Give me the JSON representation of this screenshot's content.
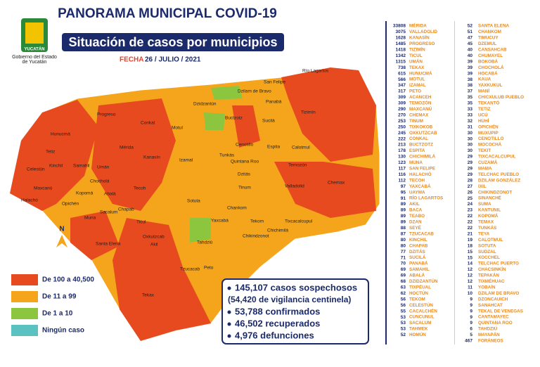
{
  "header": {
    "title": "PANORAMA MUNICIPAL COVID-19",
    "subtitle": "Situación de casos por municipios",
    "date_label": "FECHA",
    "date": "26 / JULIO / 2021",
    "logo_text": "YUCATÁN",
    "government": "Gobierno del Estado de Yucatán"
  },
  "map": {
    "north": "N",
    "labels": [
      "Río Lagartos",
      "San Felipe",
      "Dzilam de Bravo",
      "Tizimín",
      "Panabá",
      "Progreso",
      "Dzidzantún",
      "Buctzotz",
      "Sucilá",
      "Hunucmá",
      "Conkal",
      "Motul",
      "Mérida",
      "Kanasín",
      "Izamal",
      "Cenotillo",
      "Espita",
      "Calotmul",
      "Tetiz",
      "Kinchil",
      "Samahil",
      "Umán",
      "Celestún",
      "Temozón",
      "Maxcanú",
      "Chocholá",
      "Kopomá",
      "Abalá",
      "Tecoh",
      "Tunkás",
      "Quintana Roo",
      "Dzitás",
      "Tinum",
      "Valladolid",
      "Chemax",
      "Halachó",
      "Opichén",
      "Muna",
      "Sacalum",
      "Chapab",
      "Ticul",
      "Sotuta",
      "Yaxcabá",
      "Chankom",
      "Tekom",
      "Santa Elena",
      "Oxkutzcab",
      "Akil",
      "Tahdziú",
      "Chikindzonot",
      "Chichimilá",
      "Tzucacab",
      "Peto",
      "Tekax",
      "Tixcacalcupul"
    ]
  },
  "legend": [
    {
      "label": "De 100 a 40,500",
      "color": "#e64a1e"
    },
    {
      "label": "De 11 a 99",
      "color": "#f5a51c"
    },
    {
      "label": "De 1 a 10",
      "color": "#8cc63e"
    },
    {
      "label": "Ningún caso",
      "color": "#5cc1c1"
    }
  ],
  "stats": [
    "145,107 casos sospechosos",
    "(54,420 de vigilancia centinela)",
    "53,788 confirmados",
    "46,502 recuperados",
    "4,976 defunciones"
  ],
  "municipalities": [
    [
      "33808",
      "MÉRIDA"
    ],
    [
      "3075",
      "VALLADOLID"
    ],
    [
      "1628",
      "KANASÍN"
    ],
    [
      "1485",
      "PROGRESO"
    ],
    [
      "1418",
      "TIZIMÍN"
    ],
    [
      "1342",
      "TICUL"
    ],
    [
      "1315",
      "UMÁN"
    ],
    [
      "738",
      "TEKAX"
    ],
    [
      "615",
      "HUNUCMÁ"
    ],
    [
      "566",
      "MOTUL"
    ],
    [
      "347",
      "IZAMAL"
    ],
    [
      "317",
      "PETO"
    ],
    [
      "309",
      "ACANCEH"
    ],
    [
      "309",
      "TEMOZÓN"
    ],
    [
      "290",
      "MAXCANÚ"
    ],
    [
      "270",
      "CHEMAX"
    ],
    [
      "253",
      "TINUM"
    ],
    [
      "250",
      "TIXKOKOB"
    ],
    [
      "245",
      "OXKUTZCAB"
    ],
    [
      "222",
      "CONKAL"
    ],
    [
      "213",
      "BUCTZOTZ"
    ],
    [
      "178",
      "ESPITA"
    ],
    [
      "130",
      "CHICHIMILÁ"
    ],
    [
      "123",
      "MUNA"
    ],
    [
      "117",
      "SAN FELIPE"
    ],
    [
      "116",
      "HALACHÓ"
    ],
    [
      "112",
      "TECOH"
    ],
    [
      "97",
      "YAXCABÁ"
    ],
    [
      "95",
      "UAYMA"
    ],
    [
      "91",
      "RÍO LAGARTOS"
    ],
    [
      "89",
      "AKIL"
    ],
    [
      "89",
      "BACA"
    ],
    [
      "89",
      "TEABO"
    ],
    [
      "89",
      "DZAN"
    ],
    [
      "88",
      "SEYÉ"
    ],
    [
      "87",
      "TZUCACAB"
    ],
    [
      "80",
      "KINCHIL"
    ],
    [
      "80",
      "CHAPAB"
    ],
    [
      "77",
      "DZITÁS"
    ],
    [
      "71",
      "SUCILÁ"
    ],
    [
      "70",
      "PANABÁ"
    ],
    [
      "69",
      "SAMAHIL"
    ],
    [
      "69",
      "ABALÁ"
    ],
    [
      "68",
      "DZIDZANTÚN"
    ],
    [
      "63",
      "TIXPÉUAL"
    ],
    [
      "62",
      "HOCTÚN"
    ],
    [
      "56",
      "TEKOM"
    ],
    [
      "56",
      "CELESTÚN"
    ],
    [
      "55",
      "CACALCHÉN"
    ],
    [
      "53",
      "CUNCUNUL"
    ],
    [
      "53",
      "SACALUM"
    ],
    [
      "53",
      "TAHMEK"
    ],
    [
      "52",
      "HOMÚN"
    ],
    [
      "52",
      "SANTA ELENA"
    ],
    [
      "51",
      "CHANKOM"
    ],
    [
      "47",
      "TIMUCUY"
    ],
    [
      "45",
      "DZEMUL"
    ],
    [
      "40",
      "CANSAHCAB"
    ],
    [
      "40",
      "CHUMAYEL"
    ],
    [
      "39",
      "BOKOBÁ"
    ],
    [
      "39",
      "CHOCHOLÁ"
    ],
    [
      "39",
      "HOCABÁ"
    ],
    [
      "38",
      "KAUA"
    ],
    [
      "38",
      "YAXKUKUL"
    ],
    [
      "37",
      "MANÍ"
    ],
    [
      "35",
      "CHICXULUB PUEBLO"
    ],
    [
      "35",
      "TEKANTÓ"
    ],
    [
      "33",
      "TETIZ"
    ],
    [
      "33",
      "UCÚ"
    ],
    [
      "32",
      "HUHÍ"
    ],
    [
      "31",
      "OPICHÉN"
    ],
    [
      "30",
      "MUXUPIP"
    ],
    [
      "30",
      "CENOTILLO"
    ],
    [
      "30",
      "MOCOCHÁ"
    ],
    [
      "30",
      "TEKIT"
    ],
    [
      "29",
      "TIXCACALCUPUL"
    ],
    [
      "29",
      "CUZAMÁ"
    ],
    [
      "29",
      "MAMA"
    ],
    [
      "29",
      "TELCHAC PUEBLO"
    ],
    [
      "28",
      "DZILAM GONZÁLEZ"
    ],
    [
      "27",
      "IXIL"
    ],
    [
      "26",
      "CHIKINDZONOT"
    ],
    [
      "25",
      "SINANCHÉ"
    ],
    [
      "24",
      "SUMA"
    ],
    [
      "23",
      "KANTUNIL"
    ],
    [
      "22",
      "KOPOMÁ"
    ],
    [
      "22",
      "TEMAX"
    ],
    [
      "22",
      "TUNKÁS"
    ],
    [
      "21",
      "TEYA"
    ],
    [
      "19",
      "CALOTMUL"
    ],
    [
      "18",
      "SOTUTA"
    ],
    [
      "15",
      "SUDZAL"
    ],
    [
      "15",
      "XOCCHEL"
    ],
    [
      "14",
      "TELCHAC PUERTO"
    ],
    [
      "12",
      "CHACSINKÍN"
    ],
    [
      "12",
      "TEPAKÁN"
    ],
    [
      "12",
      "TIXMÉHUAC"
    ],
    [
      "11",
      "YOBAÍN"
    ],
    [
      "10",
      "DZILAM DE BRAVO"
    ],
    [
      "9",
      "DZONCAUICH"
    ],
    [
      "9",
      "SANAHCAT"
    ],
    [
      "9",
      "TEKAL DE VENEGAS"
    ],
    [
      "9",
      "CANTAMAYEC"
    ],
    [
      "9",
      "QUINTANA ROO"
    ],
    [
      "6",
      "TAHDZIÚ"
    ],
    [
      "5",
      "MAYAPÁN"
    ],
    [
      "467",
      "FORÁNEOS"
    ]
  ]
}
